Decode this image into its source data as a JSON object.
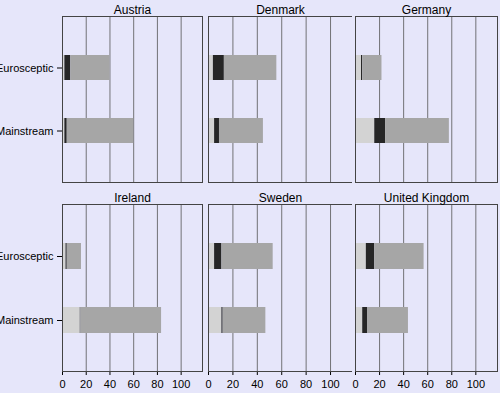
{
  "chart_data": [
    {
      "type": "bar",
      "title": "Austria",
      "orientation": "horizontal",
      "stacked": true,
      "grid": true,
      "tick_labels": "y",
      "categories": [
        "Eurosceptic",
        "Mainstream"
      ],
      "series": [
        {
          "color": "#d3d3d3",
          "values": [
            2,
            2
          ]
        },
        {
          "color": "#262626",
          "values": [
            5,
            2
          ]
        },
        {
          "color": "#a6a6a6",
          "values": [
            33,
            56
          ]
        }
      ],
      "xlim": [
        0,
        118
      ],
      "xticks": [
        0,
        20,
        40,
        60,
        80,
        100
      ]
    },
    {
      "type": "bar",
      "title": "Denmark",
      "orientation": "horizontal",
      "stacked": true,
      "grid": true,
      "tick_labels": false,
      "categories": [
        "Eurosceptic",
        "Mainstream"
      ],
      "series": [
        {
          "color": "#d3d3d3",
          "values": [
            4,
            5
          ]
        },
        {
          "color": "#262626",
          "values": [
            9,
            4
          ]
        },
        {
          "color": "#a6a6a6",
          "values": [
            43,
            36
          ]
        }
      ],
      "xlim": [
        0,
        118
      ],
      "xticks": [
        0,
        20,
        40,
        60,
        80,
        100
      ]
    },
    {
      "type": "bar",
      "title": "Germany",
      "orientation": "horizontal",
      "stacked": true,
      "grid": true,
      "tick_labels": false,
      "categories": [
        "Eurosceptic",
        "Mainstream"
      ],
      "series": [
        {
          "color": "#d3d3d3",
          "values": [
            5,
            16
          ]
        },
        {
          "color": "#262626",
          "values": [
            1,
            9
          ]
        },
        {
          "color": "#a6a6a6",
          "values": [
            16,
            53
          ]
        }
      ],
      "xlim": [
        0,
        118
      ],
      "xticks": [
        0,
        20,
        40,
        60,
        80,
        100
      ]
    },
    {
      "type": "bar",
      "title": "Ireland",
      "orientation": "horizontal",
      "stacked": true,
      "grid": true,
      "tick_labels": true,
      "categories": [
        "Eurosceptic",
        "Mainstream"
      ],
      "series": [
        {
          "color": "#d3d3d3",
          "values": [
            3,
            15
          ]
        },
        {
          "color": "#262626",
          "values": [
            1,
            0.5
          ]
        },
        {
          "color": "#a6a6a6",
          "values": [
            12,
            68
          ]
        }
      ],
      "xlim": [
        0,
        118
      ],
      "xticks": [
        0,
        20,
        40,
        60,
        80,
        100
      ]
    },
    {
      "type": "bar",
      "title": "Sweden",
      "orientation": "horizontal",
      "stacked": true,
      "grid": true,
      "tick_labels": "x",
      "categories": [
        "Eurosceptic",
        "Mainstream"
      ],
      "series": [
        {
          "color": "#d3d3d3",
          "values": [
            5,
            11
          ]
        },
        {
          "color": "#262626",
          "values": [
            6,
            1
          ]
        },
        {
          "color": "#a6a6a6",
          "values": [
            42,
            35
          ]
        }
      ],
      "xlim": [
        0,
        118
      ],
      "xticks": [
        0,
        20,
        40,
        60,
        80,
        100
      ]
    },
    {
      "type": "bar",
      "title": "United Kingdom",
      "orientation": "horizontal",
      "stacked": true,
      "grid": true,
      "tick_labels": "x",
      "categories": [
        "Eurosceptic",
        "Mainstream"
      ],
      "series": [
        {
          "color": "#d3d3d3",
          "values": [
            9,
            6
          ]
        },
        {
          "color": "#262626",
          "values": [
            7,
            4
          ]
        },
        {
          "color": "#a6a6a6",
          "values": [
            41,
            34
          ]
        }
      ],
      "xlim": [
        0,
        118
      ],
      "xticks": [
        0,
        20,
        40,
        60,
        80,
        100
      ]
    }
  ]
}
